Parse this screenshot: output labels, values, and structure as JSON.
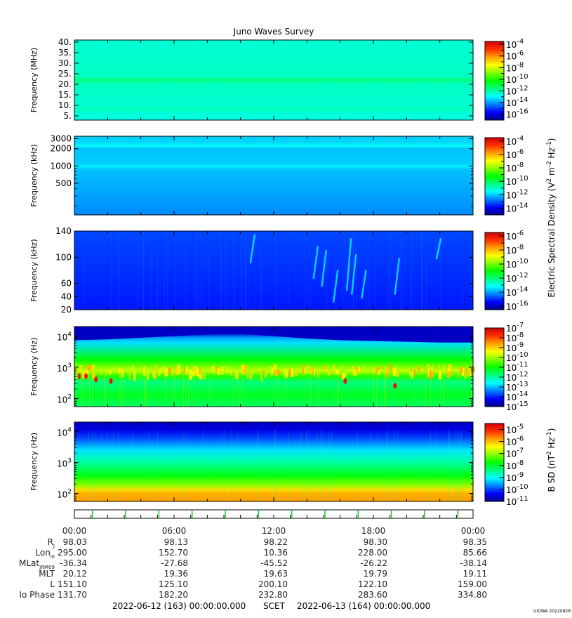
{
  "title": "Juno Waves Survey",
  "time_axis": {
    "tick_labels": [
      "00:00",
      "06:00",
      "12:00",
      "18:00",
      "00:00"
    ],
    "scet_label": "SCET",
    "start": "2022-06-12 (163) 00:00:00.000",
    "end": "2022-06-13 (164) 00:00:00.000"
  },
  "ephemeris": [
    {
      "label": "R",
      "sub": "J",
      "values": [
        "98.03",
        "98.13",
        "98.22",
        "98.30",
        "98.35"
      ]
    },
    {
      "label": "Lon",
      "sub": "III",
      "values": [
        "295.00",
        "152.70",
        "10.36",
        "228.00",
        "85.66"
      ]
    },
    {
      "label": "MLat",
      "sub": "JRM09",
      "values": [
        "-36.34",
        "-27.68",
        "-45.52",
        "-26.22",
        "-38.14"
      ]
    },
    {
      "label": "MLT",
      "sub": "",
      "values": [
        "20.12",
        "19.36",
        "19.63",
        "19.79",
        "19.11"
      ]
    },
    {
      "label": "L",
      "sub": "",
      "values": [
        "151.10",
        "125.10",
        "200.10",
        "122.10",
        "159.00"
      ]
    },
    {
      "label": "Io Phase",
      "sub": "",
      "values": [
        "131.70",
        "182.20",
        "232.80",
        "283.60",
        "334.80"
      ]
    }
  ],
  "colorbar_labels": {
    "electric": "Electric Spectral Density (V² m⁻² Hz⁻¹)",
    "electric_parts": [
      "Electric Spectral Density (V",
      "2",
      " m",
      "-2",
      " Hz",
      "-1",
      ")"
    ],
    "magnetic_parts": [
      "B SD (nT",
      "2",
      " Hz",
      "-1",
      ")"
    ]
  },
  "footer_stamp": "UIOWA 20220828",
  "colors": {
    "spectrum": [
      "#00008b",
      "#0000ff",
      "#0080ff",
      "#00ffff",
      "#00ff80",
      "#00ff00",
      "#80ff00",
      "#ffff00",
      "#ffa000",
      "#ff3000",
      "#cc0000"
    ]
  },
  "chart_data": [
    {
      "type": "heatmap",
      "panel": "HFR high",
      "ylabel": "Frequency (MHz)",
      "yscale": "linear",
      "ylim": [
        3,
        41
      ],
      "yticks": [
        5,
        10,
        15,
        20,
        25,
        30,
        35,
        40
      ],
      "ytick_labels": [
        "5.",
        "10.",
        "15.",
        "20.",
        "25.",
        "30.",
        "35.",
        "40."
      ],
      "colorbar": {
        "exponents": [
          -4,
          -6,
          -8,
          -10,
          -12,
          -14,
          -16
        ],
        "range": [
          -17,
          -3.5
        ]
      },
      "background_level": -12.5,
      "features": [
        {
          "freq": 21,
          "level": -11.5,
          "desc": "band"
        },
        {
          "freq": 9,
          "level": -12.2,
          "desc": "faint band"
        }
      ]
    },
    {
      "type": "heatmap",
      "panel": "HFR low",
      "ylabel": "Frequency (kHz)",
      "yscale": "log",
      "ylim": [
        140,
        3300
      ],
      "yticks": [
        500,
        1000,
        2000,
        3000
      ],
      "ytick_labels": [
        "500",
        "1000",
        "2000",
        "3000"
      ],
      "colorbar": {
        "exponents": [
          -4,
          -6,
          -8,
          -10,
          -12,
          -14
        ],
        "range": [
          -15,
          -3.5
        ]
      },
      "background_level": -12.6,
      "features": [
        {
          "freq": 2000,
          "level": -11.4,
          "desc": "band"
        },
        {
          "freq": 1000,
          "level": -11.8,
          "desc": "band"
        },
        {
          "freq": 2700,
          "level": -11.9,
          "desc": "band"
        }
      ]
    },
    {
      "type": "heatmap",
      "panel": "LFR high",
      "ylabel": "Frequency (kHz)",
      "yscale": "linear",
      "ylim": [
        20,
        140
      ],
      "yticks": [
        20,
        40,
        60,
        100,
        140
      ],
      "ytick_labels": [
        "20",
        "40",
        "60",
        "100",
        "140"
      ],
      "colorbar": {
        "exponents": [
          -6,
          -8,
          -10,
          -12,
          -14,
          -16
        ],
        "range": [
          -16.5,
          -5.5
        ]
      },
      "background_level": -15.2,
      "features": [
        {
          "time_h": 14.5,
          "level": -13.5,
          "desc": "bursts"
        },
        {
          "time_h": 16.5,
          "level": -13.3,
          "desc": "bursts"
        },
        {
          "time_h": 19.5,
          "level": -13.8,
          "desc": "bursts"
        }
      ]
    },
    {
      "type": "heatmap",
      "panel": "LFR low",
      "ylabel": "Frequency (Hz)",
      "yscale": "log",
      "ylim": [
        55,
        20000
      ],
      "yticks": [
        100,
        1000,
        10000
      ],
      "ytick_labels": [
        "10^2",
        "10^3",
        "10^4"
      ],
      "colorbar": {
        "exponents": [
          -7,
          -8,
          -9,
          -10,
          -11,
          -12,
          -13,
          -14,
          -15
        ],
        "range": [
          -15,
          -7
        ]
      },
      "background_level": -12.8,
      "features": [
        {
          "freq": 700,
          "level": -9.2,
          "desc": "emission band"
        },
        {
          "freq": 10000,
          "level": -14.5,
          "desc": "low-level region"
        }
      ]
    },
    {
      "type": "heatmap",
      "panel": "Magnetic",
      "ylabel": "Frequency (Hz)",
      "yscale": "log",
      "ylim": [
        55,
        20000
      ],
      "yticks": [
        100,
        1000,
        10000
      ],
      "ytick_labels": [
        "10^2",
        "10^3",
        "10^4"
      ],
      "colorbar": {
        "exponents": [
          -5,
          -6,
          -7,
          -8,
          -9,
          -10,
          -11
        ],
        "range": [
          -11,
          -4.5
        ]
      },
      "background_level": -8.5,
      "features": [
        {
          "freq": 80,
          "level": -5.8,
          "desc": "low-frequency enhancement"
        },
        {
          "freq": 10000,
          "level": -10.6,
          "desc": "high-frequency floor"
        }
      ]
    }
  ]
}
